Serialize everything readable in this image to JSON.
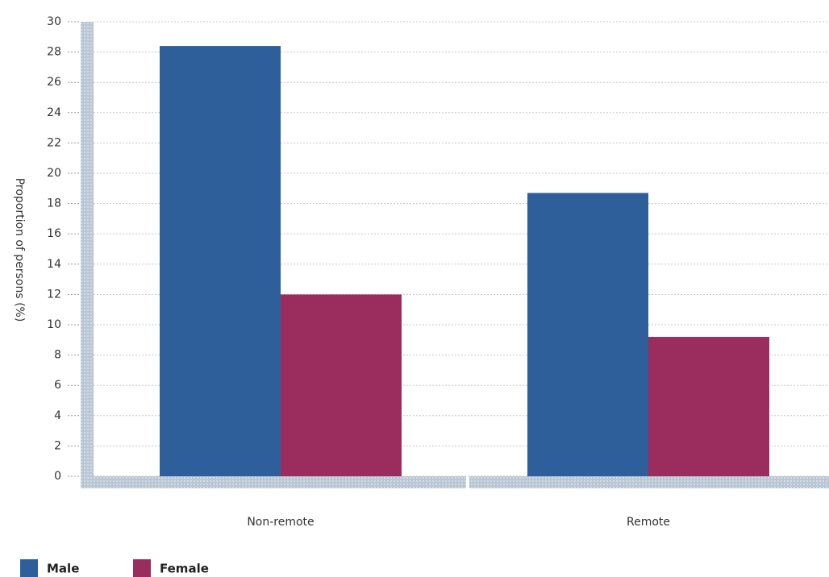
{
  "chart_data": {
    "type": "bar",
    "y_label": "Proportion of persons (%)",
    "categories": [
      "Non-remote",
      "Remote"
    ],
    "series": [
      {
        "name": "Male",
        "color": "#2f5f9a",
        "values": [
          28.4,
          18.7
        ]
      },
      {
        "name": "Female",
        "color": "#9b2d5e",
        "values": [
          12.0,
          9.2
        ]
      }
    ],
    "ylim": [
      0,
      30
    ],
    "yticks": [
      0,
      2,
      4,
      6,
      8,
      10,
      12,
      14,
      16,
      18,
      20,
      22,
      24,
      26,
      28,
      30
    ],
    "grid": true,
    "legend": "bottom-left"
  }
}
